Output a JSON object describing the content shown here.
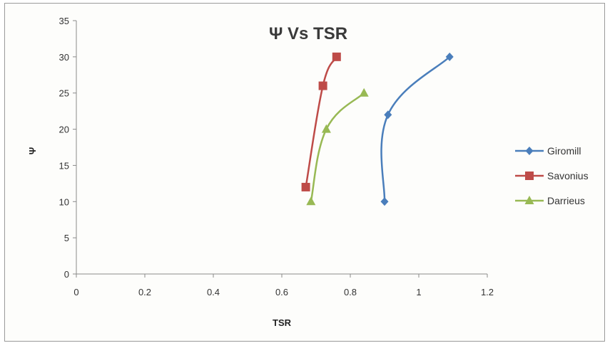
{
  "chart_data": {
    "type": "line",
    "title": "Ψ Vs TSR",
    "xlabel": "TSR",
    "ylabel": "Ψ",
    "xlim": [
      0,
      1.2
    ],
    "ylim": [
      0,
      35
    ],
    "xticks": [
      0,
      0.2,
      0.4,
      0.6,
      0.8,
      1,
      1.2
    ],
    "yticks": [
      0,
      5,
      10,
      15,
      20,
      25,
      30,
      35
    ],
    "grid": false,
    "legend_position": "right",
    "series": [
      {
        "name": "Giromill",
        "color": "#4a7ebb",
        "marker": "diamond",
        "points": [
          [
            0.9,
            10
          ],
          [
            0.91,
            22
          ],
          [
            1.09,
            30
          ]
        ]
      },
      {
        "name": "Savonius",
        "color": "#be4b48",
        "marker": "square",
        "points": [
          [
            0.67,
            12
          ],
          [
            0.72,
            26
          ],
          [
            0.76,
            30
          ]
        ]
      },
      {
        "name": "Darrieus",
        "color": "#98b954",
        "marker": "triangle",
        "points": [
          [
            0.685,
            10
          ],
          [
            0.73,
            20
          ],
          [
            0.84,
            25
          ]
        ]
      }
    ]
  }
}
